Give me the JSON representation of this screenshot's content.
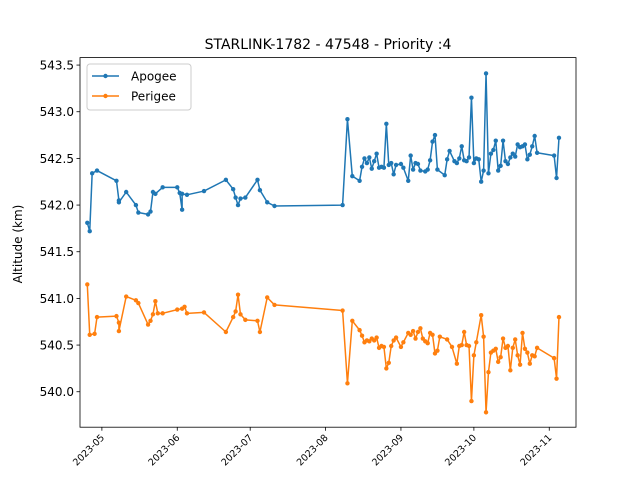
{
  "chart_data": {
    "type": "line",
    "title": "STARLINK-1782 - 47548 - Priority :4",
    "xlabel": "",
    "ylabel": "Altitude (km)",
    "ylim": [
      539.62,
      543.58
    ],
    "xlim": [
      "2023-04-22",
      "2023-11-12"
    ],
    "y_ticks": [
      540.0,
      540.5,
      541.0,
      541.5,
      542.0,
      542.5,
      543.0,
      543.5
    ],
    "y_tick_labels": [
      "540.0",
      "540.5",
      "541.0",
      "541.5",
      "542.0",
      "542.5",
      "543.0",
      "543.5"
    ],
    "x_ticks": [
      "2023-05-01",
      "2023-06-01",
      "2023-07-01",
      "2023-08-01",
      "2023-09-01",
      "2023-10-01",
      "2023-11-01"
    ],
    "x_tick_labels": [
      "2023-05",
      "2023-06",
      "2023-07",
      "2023-08",
      "2023-09",
      "2023-10",
      "2023-11"
    ],
    "grid": false,
    "legend_position": "upper left",
    "series": [
      {
        "name": "Apogee",
        "color": "#1f77b4",
        "points": [
          [
            "2023-04-25",
            541.81
          ],
          [
            "2023-04-26",
            541.72
          ],
          [
            "2023-04-27",
            542.34
          ],
          [
            "2023-04-29",
            542.37
          ],
          [
            "2023-05-07",
            542.26
          ],
          [
            "2023-05-08",
            542.05
          ],
          [
            "2023-05-08",
            542.03
          ],
          [
            "2023-05-11",
            542.14
          ],
          [
            "2023-05-15",
            542.0
          ],
          [
            "2023-05-16",
            541.92
          ],
          [
            "2023-05-20",
            541.9
          ],
          [
            "2023-05-21",
            541.93
          ],
          [
            "2023-05-22",
            542.14
          ],
          [
            "2023-05-23",
            542.12
          ],
          [
            "2023-05-26",
            542.19
          ],
          [
            "2023-06-01",
            542.19
          ],
          [
            "2023-06-02",
            542.13
          ],
          [
            "2023-06-03",
            541.95
          ],
          [
            "2023-06-03",
            542.12
          ],
          [
            "2023-06-05",
            542.11
          ],
          [
            "2023-06-12",
            542.15
          ],
          [
            "2023-06-21",
            542.27
          ],
          [
            "2023-06-24",
            542.17
          ],
          [
            "2023-06-25",
            542.08
          ],
          [
            "2023-06-26",
            542.0
          ],
          [
            "2023-06-27",
            542.07
          ],
          [
            "2023-06-29",
            542.08
          ],
          [
            "2023-07-04",
            542.27
          ],
          [
            "2023-07-05",
            542.16
          ],
          [
            "2023-07-08",
            542.03
          ],
          [
            "2023-07-11",
            541.99
          ],
          [
            "2023-08-08",
            542.0
          ],
          [
            "2023-08-10",
            542.92
          ],
          [
            "2023-08-12",
            542.31
          ],
          [
            "2023-08-15",
            542.26
          ],
          [
            "2023-08-16",
            542.41
          ],
          [
            "2023-08-17",
            542.5
          ],
          [
            "2023-08-18",
            542.45
          ],
          [
            "2023-08-19",
            542.51
          ],
          [
            "2023-08-20",
            542.39
          ],
          [
            "2023-08-21",
            542.47
          ],
          [
            "2023-08-22",
            542.55
          ],
          [
            "2023-08-23",
            542.4
          ],
          [
            "2023-08-24",
            542.41
          ],
          [
            "2023-08-25",
            542.4
          ],
          [
            "2023-08-26",
            542.87
          ],
          [
            "2023-08-27",
            542.43
          ],
          [
            "2023-08-28",
            542.45
          ],
          [
            "2023-08-29",
            542.33
          ],
          [
            "2023-08-30",
            542.43
          ],
          [
            "2023-09-01",
            542.44
          ],
          [
            "2023-09-02",
            542.4
          ],
          [
            "2023-09-04",
            542.26
          ],
          [
            "2023-09-05",
            542.53
          ],
          [
            "2023-09-06",
            542.38
          ],
          [
            "2023-09-07",
            542.45
          ],
          [
            "2023-09-08",
            542.44
          ],
          [
            "2023-09-09",
            542.37
          ],
          [
            "2023-09-11",
            542.36
          ],
          [
            "2023-09-12",
            542.38
          ],
          [
            "2023-09-13",
            542.48
          ],
          [
            "2023-09-14",
            542.68
          ],
          [
            "2023-09-15",
            542.75
          ],
          [
            "2023-09-16",
            542.38
          ],
          [
            "2023-09-19",
            542.32
          ],
          [
            "2023-09-20",
            542.49
          ],
          [
            "2023-09-21",
            542.58
          ],
          [
            "2023-09-23",
            542.47
          ],
          [
            "2023-09-24",
            542.45
          ],
          [
            "2023-09-25",
            542.5
          ],
          [
            "2023-09-26",
            542.63
          ],
          [
            "2023-09-27",
            542.48
          ],
          [
            "2023-09-28",
            542.47
          ],
          [
            "2023-09-29",
            542.51
          ],
          [
            "2023-09-30",
            543.15
          ],
          [
            "2023-10-01",
            542.45
          ],
          [
            "2023-10-02",
            542.5
          ],
          [
            "2023-10-03",
            542.49
          ],
          [
            "2023-10-04",
            542.25
          ],
          [
            "2023-10-05",
            542.37
          ],
          [
            "2023-10-06",
            543.41
          ],
          [
            "2023-10-07",
            542.34
          ],
          [
            "2023-10-08",
            542.55
          ],
          [
            "2023-10-09",
            542.59
          ],
          [
            "2023-10-10",
            542.69
          ],
          [
            "2023-10-11",
            542.37
          ],
          [
            "2023-10-12",
            542.42
          ],
          [
            "2023-10-13",
            542.69
          ],
          [
            "2023-10-14",
            542.47
          ],
          [
            "2023-10-15",
            542.44
          ],
          [
            "2023-10-16",
            542.51
          ],
          [
            "2023-10-17",
            542.55
          ],
          [
            "2023-10-18",
            542.52
          ],
          [
            "2023-10-19",
            542.65
          ],
          [
            "2023-10-20",
            542.62
          ],
          [
            "2023-10-21",
            542.63
          ],
          [
            "2023-10-22",
            542.65
          ],
          [
            "2023-10-23",
            542.49
          ],
          [
            "2023-10-24",
            542.54
          ],
          [
            "2023-10-25",
            542.63
          ],
          [
            "2023-10-26",
            542.74
          ],
          [
            "2023-10-27",
            542.56
          ],
          [
            "2023-11-03",
            542.53
          ],
          [
            "2023-11-04",
            542.29
          ],
          [
            "2023-11-05",
            542.72
          ]
        ]
      },
      {
        "name": "Perigee",
        "color": "#ff7f0e",
        "points": [
          [
            "2023-04-25",
            541.15
          ],
          [
            "2023-04-26",
            540.61
          ],
          [
            "2023-04-28",
            540.62
          ],
          [
            "2023-04-29",
            540.8
          ],
          [
            "2023-05-07",
            540.81
          ],
          [
            "2023-05-08",
            540.74
          ],
          [
            "2023-05-08",
            540.65
          ],
          [
            "2023-05-11",
            541.02
          ],
          [
            "2023-05-15",
            540.98
          ],
          [
            "2023-05-16",
            540.95
          ],
          [
            "2023-05-20",
            540.72
          ],
          [
            "2023-05-21",
            540.76
          ],
          [
            "2023-05-22",
            540.83
          ],
          [
            "2023-05-23",
            540.97
          ],
          [
            "2023-05-24",
            540.84
          ],
          [
            "2023-05-26",
            540.84
          ],
          [
            "2023-06-01",
            540.88
          ],
          [
            "2023-06-03",
            540.89
          ],
          [
            "2023-06-04",
            540.91
          ],
          [
            "2023-06-05",
            540.84
          ],
          [
            "2023-06-12",
            540.85
          ],
          [
            "2023-06-21",
            540.64
          ],
          [
            "2023-06-24",
            540.8
          ],
          [
            "2023-06-25",
            540.86
          ],
          [
            "2023-06-26",
            541.04
          ],
          [
            "2023-06-27",
            540.83
          ],
          [
            "2023-06-29",
            540.77
          ],
          [
            "2023-07-04",
            540.76
          ],
          [
            "2023-07-05",
            540.64
          ],
          [
            "2023-07-08",
            541.01
          ],
          [
            "2023-07-11",
            540.93
          ],
          [
            "2023-08-08",
            540.87
          ],
          [
            "2023-08-10",
            540.09
          ],
          [
            "2023-08-12",
            540.76
          ],
          [
            "2023-08-15",
            540.66
          ],
          [
            "2023-08-16",
            540.6
          ],
          [
            "2023-08-17",
            540.53
          ],
          [
            "2023-08-18",
            540.55
          ],
          [
            "2023-08-19",
            540.54
          ],
          [
            "2023-08-20",
            540.57
          ],
          [
            "2023-08-21",
            540.55
          ],
          [
            "2023-08-22",
            540.58
          ],
          [
            "2023-08-23",
            540.47
          ],
          [
            "2023-08-24",
            540.49
          ],
          [
            "2023-08-25",
            540.48
          ],
          [
            "2023-08-26",
            540.25
          ],
          [
            "2023-08-27",
            540.31
          ],
          [
            "2023-08-28",
            540.49
          ],
          [
            "2023-08-29",
            540.55
          ],
          [
            "2023-08-30",
            540.58
          ],
          [
            "2023-09-01",
            540.48
          ],
          [
            "2023-09-02",
            540.53
          ],
          [
            "2023-09-04",
            540.63
          ],
          [
            "2023-09-05",
            540.61
          ],
          [
            "2023-09-06",
            540.65
          ],
          [
            "2023-09-07",
            540.57
          ],
          [
            "2023-09-08",
            540.64
          ],
          [
            "2023-09-09",
            540.68
          ],
          [
            "2023-09-10",
            540.57
          ],
          [
            "2023-09-11",
            540.54
          ],
          [
            "2023-09-12",
            540.52
          ],
          [
            "2023-09-13",
            540.63
          ],
          [
            "2023-09-14",
            540.61
          ],
          [
            "2023-09-15",
            540.41
          ],
          [
            "2023-09-16",
            540.44
          ],
          [
            "2023-09-17",
            540.59
          ],
          [
            "2023-09-20",
            540.56
          ],
          [
            "2023-09-22",
            540.48
          ],
          [
            "2023-09-24",
            540.3
          ],
          [
            "2023-09-25",
            540.49
          ],
          [
            "2023-09-26",
            540.5
          ],
          [
            "2023-09-27",
            540.64
          ],
          [
            "2023-09-28",
            540.5
          ],
          [
            "2023-09-29",
            540.49
          ],
          [
            "2023-09-30",
            539.9
          ],
          [
            "2023-10-01",
            540.39
          ],
          [
            "2023-10-02",
            540.53
          ],
          [
            "2023-10-04",
            540.82
          ],
          [
            "2023-10-05",
            540.59
          ],
          [
            "2023-10-06",
            539.78
          ],
          [
            "2023-10-07",
            540.21
          ],
          [
            "2023-10-08",
            540.42
          ],
          [
            "2023-10-09",
            540.44
          ],
          [
            "2023-10-10",
            540.46
          ],
          [
            "2023-10-11",
            540.32
          ],
          [
            "2023-10-12",
            540.37
          ],
          [
            "2023-10-13",
            540.57
          ],
          [
            "2023-10-14",
            540.47
          ],
          [
            "2023-10-15",
            540.49
          ],
          [
            "2023-10-16",
            540.23
          ],
          [
            "2023-10-17",
            540.47
          ],
          [
            "2023-10-18",
            540.56
          ],
          [
            "2023-10-19",
            540.39
          ],
          [
            "2023-10-20",
            540.29
          ],
          [
            "2023-10-21",
            540.63
          ],
          [
            "2023-10-22",
            540.46
          ],
          [
            "2023-10-23",
            540.42
          ],
          [
            "2023-10-24",
            540.3
          ],
          [
            "2023-10-25",
            540.39
          ],
          [
            "2023-10-26",
            540.38
          ],
          [
            "2023-10-27",
            540.47
          ],
          [
            "2023-11-03",
            540.36
          ],
          [
            "2023-11-04",
            540.14
          ],
          [
            "2023-11-05",
            540.8
          ]
        ]
      }
    ]
  }
}
